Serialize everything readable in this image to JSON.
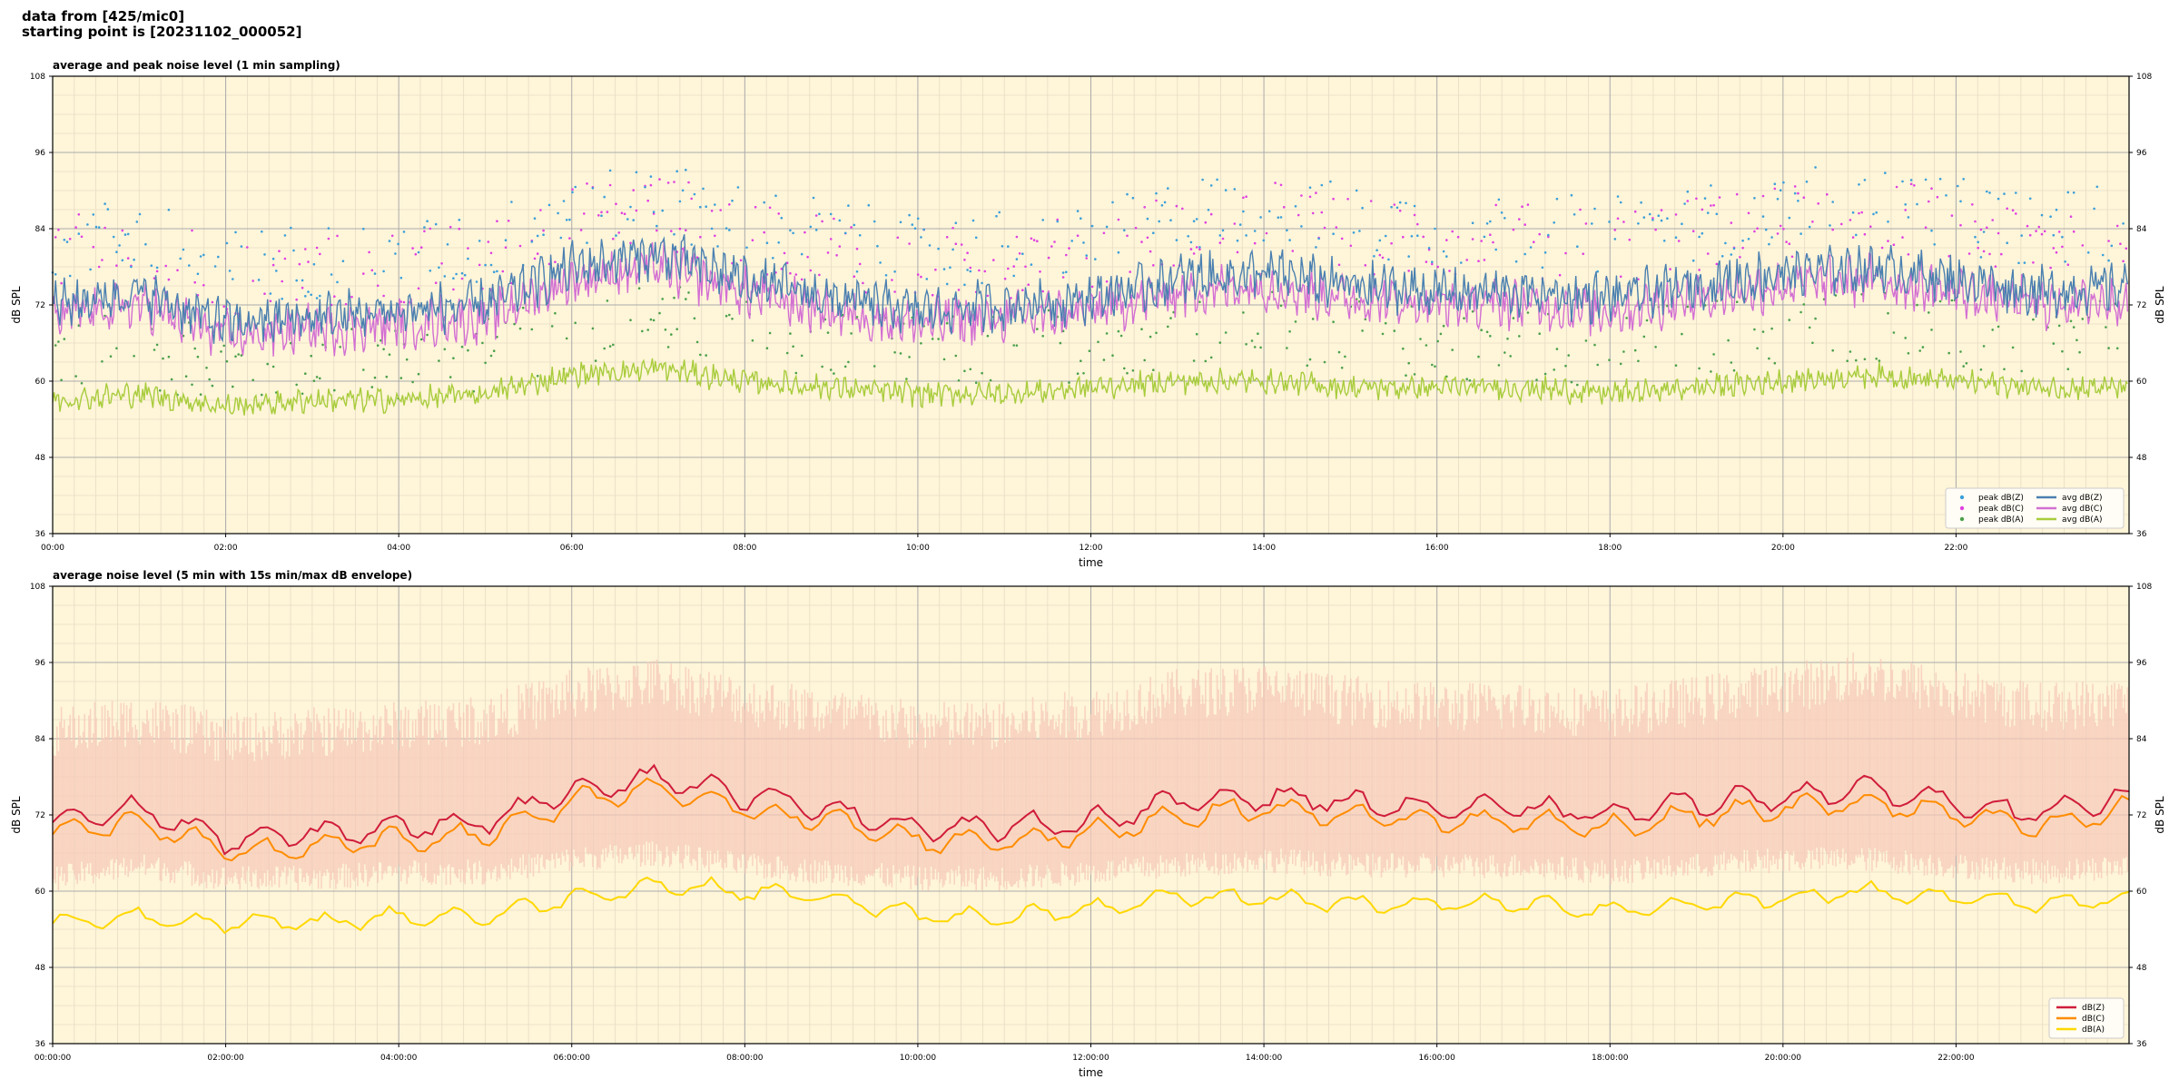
{
  "header": {
    "line1": "data from [425/mic0]",
    "line2": "starting point is [20231102_000052]"
  },
  "colors": {
    "plot_bg": "#fff5d9",
    "grid_major": "#aaaaaa",
    "grid_minor": "#e6dcc4",
    "peak_z": "#3a9fd9",
    "peak_c": "#e040e0",
    "peak_a": "#4aa04a",
    "avg_z": "#4a80b0",
    "avg_c": "#d36fd3",
    "avg_a": "#a8cc3c",
    "env": "#f5c8b8",
    "dbz": "#d01c3a",
    "dbc": "#ff8c00",
    "dba": "#ffd800"
  },
  "chart_data": [
    {
      "type": "line",
      "title": "average and peak noise level (1 min sampling)",
      "xlabel": "time",
      "ylabel": "dB SPL",
      "ylim": [
        36,
        108
      ],
      "yticks": [
        "36",
        "48",
        "60",
        "72",
        "84",
        "96",
        "108"
      ],
      "xlim_hours": [
        0,
        24
      ],
      "xticks": [
        "00:00",
        "02:00",
        "04:00",
        "06:00",
        "08:00",
        "10:00",
        "12:00",
        "14:00",
        "16:00",
        "18:00",
        "20:00",
        "22:00"
      ],
      "grid": true,
      "legend_position": "lower-right",
      "legend": [
        {
          "label": "peak dB(Z)",
          "kind": "dot",
          "color_key": "peak_z"
        },
        {
          "label": "peak dB(C)",
          "kind": "dot",
          "color_key": "peak_c"
        },
        {
          "label": "peak dB(A)",
          "kind": "dot",
          "color_key": "peak_a"
        },
        {
          "label": "avg dB(Z)",
          "kind": "line",
          "color_key": "avg_z"
        },
        {
          "label": "avg dB(C)",
          "kind": "line",
          "color_key": "avg_c"
        },
        {
          "label": "avg dB(A)",
          "kind": "line",
          "color_key": "avg_a"
        }
      ],
      "series_hourly": {
        "hours": [
          0,
          1,
          2,
          3,
          4,
          5,
          6,
          7,
          8,
          9,
          10,
          11,
          12,
          13,
          14,
          15,
          16,
          17,
          18,
          19,
          20,
          21,
          22,
          23,
          24
        ],
        "avg_z": [
          72,
          74,
          69,
          70,
          71,
          72,
          78,
          80,
          76,
          73,
          71,
          72,
          73,
          76,
          77,
          75,
          74,
          74,
          73,
          75,
          77,
          78,
          76,
          74,
          75
        ],
        "avg_c": [
          70,
          72,
          67,
          68,
          69,
          70,
          76,
          78,
          74,
          71,
          69,
          70,
          71,
          74,
          75,
          73,
          72,
          72,
          71,
          73,
          75,
          76,
          74,
          72,
          73
        ],
        "avg_a": [
          57,
          58,
          56,
          57,
          57,
          58,
          61,
          62,
          60,
          59,
          58,
          58,
          59,
          60,
          60,
          59,
          59,
          59,
          58,
          59,
          60,
          61,
          60,
          59,
          59
        ],
        "peak_z": [
          82,
          83,
          78,
          79,
          80,
          81,
          87,
          89,
          85,
          83,
          80,
          81,
          82,
          86,
          88,
          85,
          84,
          84,
          83,
          85,
          87,
          89,
          86,
          84,
          85
        ],
        "peak_c": [
          80,
          81,
          76,
          77,
          78,
          79,
          85,
          87,
          83,
          81,
          78,
          79,
          80,
          84,
          86,
          83,
          82,
          82,
          81,
          83,
          85,
          87,
          84,
          82,
          83
        ],
        "peak_a": [
          64,
          65,
          62,
          63,
          63,
          64,
          68,
          70,
          67,
          66,
          64,
          65,
          66,
          68,
          69,
          67,
          66,
          66,
          65,
          67,
          68,
          69,
          67,
          66,
          67
        ]
      }
    },
    {
      "type": "line",
      "title": "average noise level (5 min with 15s min/max dB envelope)",
      "xlabel": "time",
      "ylabel": "dB SPL",
      "ylim": [
        36,
        108
      ],
      "yticks": [
        "36",
        "48",
        "60",
        "72",
        "84",
        "96",
        "108"
      ],
      "xlim_hours": [
        0,
        24
      ],
      "xticks": [
        "00:00:00",
        "02:00:00",
        "04:00:00",
        "06:00:00",
        "08:00:00",
        "10:00:00",
        "12:00:00",
        "14:00:00",
        "16:00:00",
        "18:00:00",
        "20:00:00",
        "22:00:00"
      ],
      "grid": true,
      "legend_position": "lower-right",
      "legend": [
        {
          "label": "dB(Z)",
          "kind": "line",
          "color_key": "dbz"
        },
        {
          "label": "dB(C)",
          "kind": "line",
          "color_key": "dbc"
        },
        {
          "label": "dB(A)",
          "kind": "line",
          "color_key": "dba"
        }
      ],
      "series_hourly": {
        "hours": [
          0,
          1,
          2,
          3,
          4,
          5,
          6,
          7,
          8,
          9,
          10,
          11,
          12,
          13,
          14,
          15,
          16,
          17,
          18,
          19,
          20,
          21,
          22,
          23,
          24
        ],
        "dbz": [
          71,
          73,
          68,
          69,
          70,
          71,
          76,
          78,
          75,
          73,
          70,
          70,
          71,
          74,
          75,
          74,
          73,
          73,
          72,
          74,
          75,
          76,
          74,
          72,
          75
        ],
        "dbc": [
          69,
          71,
          66,
          67,
          68,
          69,
          74,
          76,
          73,
          71,
          68,
          68,
          69,
          72,
          73,
          72,
          71,
          71,
          70,
          72,
          73,
          74,
          72,
          70,
          73
        ],
        "dba": [
          55,
          56,
          55,
          55,
          56,
          56,
          59,
          61,
          60,
          59,
          56,
          56,
          57,
          59,
          59,
          58,
          58,
          58,
          57,
          58,
          59,
          60,
          59,
          58,
          59
        ],
        "env_min": [
          62,
          64,
          62,
          62,
          63,
          63,
          65,
          66,
          64,
          63,
          62,
          62,
          63,
          64,
          65,
          64,
          64,
          64,
          63,
          64,
          65,
          65,
          64,
          63,
          64
        ],
        "env_max": [
          85,
          87,
          84,
          85,
          86,
          87,
          91,
          93,
          90,
          88,
          86,
          86,
          88,
          91,
          92,
          90,
          89,
          89,
          88,
          90,
          92,
          94,
          91,
          89,
          90
        ]
      }
    }
  ]
}
